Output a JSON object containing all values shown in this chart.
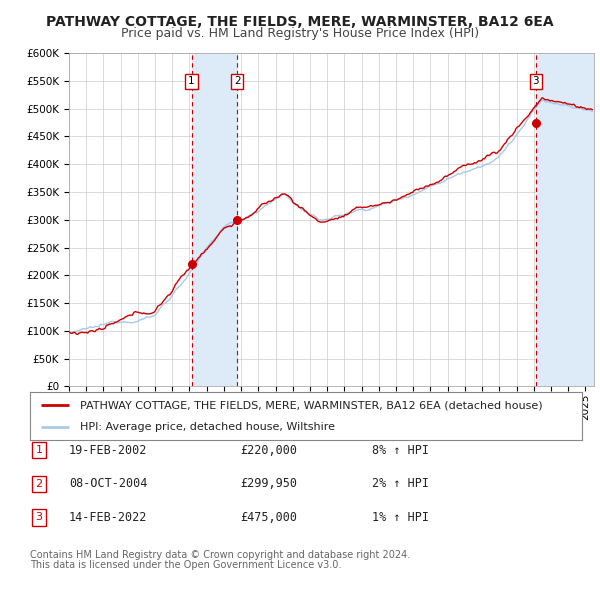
{
  "title": "PATHWAY COTTAGE, THE FIELDS, MERE, WARMINSTER, BA12 6EA",
  "subtitle": "Price paid vs. HM Land Registry's House Price Index (HPI)",
  "ylim": [
    0,
    600000
  ],
  "yticks": [
    0,
    50000,
    100000,
    150000,
    200000,
    250000,
    300000,
    350000,
    400000,
    450000,
    500000,
    550000,
    600000
  ],
  "ytick_labels": [
    "£0",
    "£50K",
    "£100K",
    "£150K",
    "£200K",
    "£250K",
    "£300K",
    "£350K",
    "£400K",
    "£450K",
    "£500K",
    "£550K",
    "£600K"
  ],
  "xlim_start": 1995.0,
  "xlim_end": 2025.5,
  "xticks": [
    1995,
    1996,
    1997,
    1998,
    1999,
    2000,
    2001,
    2002,
    2003,
    2004,
    2005,
    2006,
    2007,
    2008,
    2009,
    2010,
    2011,
    2012,
    2013,
    2014,
    2015,
    2016,
    2017,
    2018,
    2019,
    2020,
    2021,
    2022,
    2023,
    2024,
    2025
  ],
  "background_color": "#ffffff",
  "plot_bg_color": "#ffffff",
  "grid_color": "#cccccc",
  "hpi_line_color": "#aac8e8",
  "price_line_color": "#cc0000",
  "sale_marker_color": "#cc0000",
  "vband_color": "#ddeaf7",
  "vline_color": "#cc0000",
  "legend_label_price": "PATHWAY COTTAGE, THE FIELDS, MERE, WARMINSTER, BA12 6EA (detached house)",
  "legend_label_hpi": "HPI: Average price, detached house, Wiltshire",
  "sales": [
    {
      "num": 1,
      "date_str": "19-FEB-2002",
      "date_x": 2002.12,
      "price": 220000,
      "pct": "8%",
      "dir": "↑"
    },
    {
      "num": 2,
      "date_str": "08-OCT-2004",
      "date_x": 2004.77,
      "price": 299950,
      "pct": "2%",
      "dir": "↑"
    },
    {
      "num": 3,
      "date_str": "14-FEB-2022",
      "date_x": 2022.12,
      "price": 475000,
      "pct": "1%",
      "dir": "↑"
    }
  ],
  "footer_line1": "Contains HM Land Registry data © Crown copyright and database right 2024.",
  "footer_line2": "This data is licensed under the Open Government Licence v3.0.",
  "title_fontsize": 10,
  "subtitle_fontsize": 9,
  "tick_fontsize": 7.5,
  "legend_fontsize": 8,
  "table_fontsize": 8.5,
  "footer_fontsize": 7
}
